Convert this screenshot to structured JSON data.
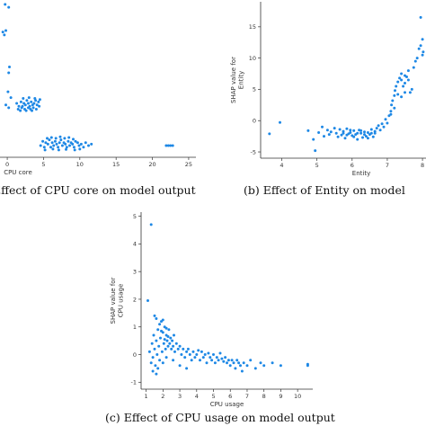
{
  "colors": {
    "points": "#1e88e5",
    "axis": "#333333",
    "caption": "#111111"
  },
  "chart_data": [
    {
      "type": "scatter",
      "caption": "Effect of CPU core on model output",
      "xlabel": "CPU core",
      "ylabel": "",
      "xlim": [
        -1,
        26
      ],
      "ylim": [
        -0.3,
        5.1
      ],
      "xticks": [
        0,
        5,
        10,
        15,
        20,
        25
      ],
      "yticks": [],
      "series": [
        {
          "points": [
            [
              -0.3,
              4.95
            ],
            [
              0.2,
              4.85
            ],
            [
              -0.6,
              4.0
            ],
            [
              -0.4,
              3.9
            ],
            [
              -0.2,
              4.05
            ],
            [
              0.3,
              2.8
            ],
            [
              0.2,
              2.6
            ],
            [
              0.1,
              1.95
            ],
            [
              0.5,
              1.75
            ],
            [
              -0.2,
              1.5
            ],
            [
              0.2,
              1.4
            ],
            [
              1.3,
              1.55
            ],
            [
              1.6,
              1.45
            ],
            [
              1.9,
              1.6
            ],
            [
              2.1,
              1.45
            ],
            [
              2.3,
              1.55
            ],
            [
              2.5,
              1.5
            ],
            [
              2.7,
              1.65
            ],
            [
              2.9,
              1.55
            ],
            [
              3.1,
              1.45
            ],
            [
              3.3,
              1.6
            ],
            [
              3.5,
              1.5
            ],
            [
              3.7,
              1.55
            ],
            [
              3.9,
              1.65
            ],
            [
              4.1,
              1.5
            ],
            [
              4.3,
              1.6
            ],
            [
              1.5,
              1.35
            ],
            [
              1.8,
              1.3
            ],
            [
              2.0,
              1.4
            ],
            [
              2.4,
              1.35
            ],
            [
              2.6,
              1.3
            ],
            [
              2.9,
              1.4
            ],
            [
              3.2,
              1.35
            ],
            [
              3.4,
              1.3
            ],
            [
              3.6,
              1.4
            ],
            [
              4.0,
              1.35
            ],
            [
              4.4,
              1.45
            ],
            [
              2.2,
              1.72
            ],
            [
              3.0,
              1.75
            ],
            [
              3.8,
              1.72
            ],
            [
              4.5,
              1.68
            ],
            [
              4.6,
              0.1
            ],
            [
              4.9,
              0.25
            ],
            [
              5.1,
              0.05
            ],
            [
              5.3,
              0.2
            ],
            [
              5.6,
              0.15
            ],
            [
              5.8,
              0.3
            ],
            [
              6.0,
              0.05
            ],
            [
              6.2,
              0.2
            ],
            [
              6.4,
              0.1
            ],
            [
              6.6,
              0.25
            ],
            [
              6.8,
              0.15
            ],
            [
              7.0,
              0.05
            ],
            [
              7.2,
              0.2
            ],
            [
              7.4,
              0.3
            ],
            [
              7.6,
              0.1
            ],
            [
              7.8,
              0.2
            ],
            [
              8.0,
              0.15
            ],
            [
              8.2,
              0.05
            ],
            [
              8.4,
              0.25
            ],
            [
              8.6,
              0.1
            ],
            [
              8.8,
              0.2
            ],
            [
              9.0,
              0.15
            ],
            [
              9.2,
              0.05
            ],
            [
              9.4,
              0.25
            ],
            [
              9.7,
              0.2
            ],
            [
              9.9,
              0.1
            ],
            [
              10.2,
              0.15
            ],
            [
              10.5,
              0.05
            ],
            [
              10.8,
              0.2
            ],
            [
              11.2,
              0.1
            ],
            [
              11.6,
              0.15
            ],
            [
              5.5,
              0.35
            ],
            [
              6.1,
              0.38
            ],
            [
              6.7,
              0.35
            ],
            [
              7.3,
              0.4
            ],
            [
              7.9,
              0.35
            ],
            [
              8.5,
              0.38
            ],
            [
              9.1,
              0.32
            ],
            [
              5.2,
              -0.05
            ],
            [
              6.3,
              -0.02
            ],
            [
              7.1,
              -0.05
            ],
            [
              8.1,
              -0.03
            ],
            [
              9.3,
              -0.05
            ],
            [
              10.0,
              -0.02
            ],
            [
              21.9,
              0.1
            ],
            [
              22.2,
              0.1
            ],
            [
              22.5,
              0.1
            ],
            [
              22.8,
              0.1
            ]
          ]
        }
      ]
    },
    {
      "type": "scatter",
      "caption": "(b) Effect of Entity on model",
      "xlabel": "Entity",
      "ylabel": "SHAP value for\nEntity",
      "xlim": [
        3.4,
        8.1
      ],
      "ylim": [
        -6,
        19
      ],
      "xticks": [
        4,
        5,
        6,
        7,
        8
      ],
      "yticks": [
        -5,
        0,
        5,
        10,
        15
      ],
      "series": [
        {
          "points": [
            [
              3.65,
              -2.1
            ],
            [
              3.95,
              -0.3
            ],
            [
              4.75,
              -1.6
            ],
            [
              4.9,
              -3.0
            ],
            [
              4.95,
              -4.8
            ],
            [
              5.05,
              -1.9
            ],
            [
              5.15,
              -1.0
            ],
            [
              5.2,
              -2.5
            ],
            [
              5.3,
              -1.5
            ],
            [
              5.35,
              -2.2
            ],
            [
              5.4,
              -1.8
            ],
            [
              5.5,
              -1.2
            ],
            [
              5.55,
              -2.0
            ],
            [
              5.6,
              -2.6
            ],
            [
              5.65,
              -1.4
            ],
            [
              5.7,
              -2.3
            ],
            [
              5.75,
              -1.7
            ],
            [
              5.8,
              -2.8
            ],
            [
              5.85,
              -1.3
            ],
            [
              5.9,
              -2.1
            ],
            [
              5.95,
              -1.9
            ],
            [
              6.0,
              -2.4
            ],
            [
              6.05,
              -1.6
            ],
            [
              6.1,
              -2.2
            ],
            [
              6.15,
              -3.0
            ],
            [
              6.2,
              -1.5
            ],
            [
              6.25,
              -2.0
            ],
            [
              6.3,
              -2.7
            ],
            [
              6.35,
              -1.8
            ],
            [
              6.4,
              -2.5
            ],
            [
              6.45,
              -1.9
            ],
            [
              6.5,
              -2.2
            ],
            [
              6.55,
              -1.4
            ],
            [
              6.6,
              -2.6
            ],
            [
              6.65,
              -2.0
            ],
            [
              5.75,
              -2.0
            ],
            [
              5.85,
              -2.3
            ],
            [
              5.95,
              -1.5
            ],
            [
              6.05,
              -2.6
            ],
            [
              6.15,
              -2.0
            ],
            [
              6.25,
              -1.6
            ],
            [
              6.35,
              -2.2
            ],
            [
              6.45,
              -2.8
            ],
            [
              6.55,
              -2.0
            ],
            [
              6.65,
              -1.7
            ],
            [
              6.7,
              -1.2
            ],
            [
              6.75,
              -0.8
            ],
            [
              6.8,
              -1.5
            ],
            [
              6.85,
              -0.5
            ],
            [
              6.9,
              -1.0
            ],
            [
              6.95,
              0.2
            ],
            [
              7.0,
              -0.4
            ],
            [
              7.05,
              0.8
            ],
            [
              7.1,
              1.5
            ],
            [
              7.12,
              2.5
            ],
            [
              7.15,
              3.2
            ],
            [
              7.2,
              4.0
            ],
            [
              7.22,
              4.8
            ],
            [
              7.25,
              5.5
            ],
            [
              7.3,
              6.2
            ],
            [
              7.35,
              6.8
            ],
            [
              7.4,
              7.5
            ],
            [
              7.45,
              5.5
            ],
            [
              7.5,
              6.0
            ],
            [
              7.55,
              7.0
            ],
            [
              7.6,
              6.5
            ],
            [
              7.65,
              4.5
            ],
            [
              7.7,
              5.0
            ],
            [
              7.3,
              4.2
            ],
            [
              7.4,
              3.8
            ],
            [
              7.5,
              4.5
            ],
            [
              7.75,
              8.5
            ],
            [
              7.8,
              9.5
            ],
            [
              7.85,
              10.0
            ],
            [
              7.9,
              11.5
            ],
            [
              7.95,
              12.0
            ],
            [
              8.0,
              13.0
            ],
            [
              7.6,
              8.0
            ],
            [
              7.5,
              7.2
            ],
            [
              7.4,
              6.5
            ],
            [
              7.95,
              16.5
            ],
            [
              8.0,
              10.5
            ],
            [
              8.02,
              11.0
            ],
            [
              7.1,
              1.0
            ],
            [
              7.2,
              2.0
            ]
          ]
        }
      ]
    },
    {
      "type": "scatter",
      "caption": "(c) Effect of CPU usage on model output",
      "xlabel": "CPU usage",
      "ylabel": "SHAP value for\nCPU usage",
      "xlim": [
        0.7,
        10.9
      ],
      "ylim": [
        -1.25,
        5.15
      ],
      "xticks": [
        1,
        2,
        3,
        4,
        5,
        6,
        7,
        8,
        9,
        10
      ],
      "yticks": [
        -1,
        0,
        1,
        2,
        3,
        4,
        5
      ],
      "series": [
        {
          "points": [
            [
              1.3,
              4.7
            ],
            [
              1.1,
              1.95
            ],
            [
              1.2,
              0.1
            ],
            [
              1.3,
              -0.3
            ],
            [
              1.35,
              0.4
            ],
            [
              1.4,
              -0.1
            ],
            [
              1.45,
              0.7
            ],
            [
              1.5,
              0.2
            ],
            [
              1.55,
              -0.4
            ],
            [
              1.6,
              0.5
            ],
            [
              1.65,
              0.0
            ],
            [
              1.7,
              0.9
            ],
            [
              1.75,
              0.3
            ],
            [
              1.8,
              -0.2
            ],
            [
              1.85,
              0.6
            ],
            [
              1.9,
              1.2
            ],
            [
              1.95,
              0.1
            ],
            [
              2.0,
              0.8
            ],
            [
              2.05,
              0.4
            ],
            [
              2.1,
              1.0
            ],
            [
              2.15,
              0.2
            ],
            [
              2.2,
              0.7
            ],
            [
              2.25,
              0.5
            ],
            [
              2.3,
              0.3
            ],
            [
              2.35,
              0.9
            ],
            [
              2.4,
              0.4
            ],
            [
              2.45,
              0.6
            ],
            [
              2.5,
              0.2
            ],
            [
              2.55,
              0.5
            ],
            [
              2.6,
              0.3
            ],
            [
              2.65,
              0.7
            ],
            [
              2.7,
              0.1
            ],
            [
              2.8,
              0.4
            ],
            [
              2.9,
              0.2
            ],
            [
              3.0,
              0.3
            ],
            [
              3.1,
              0.0
            ],
            [
              3.2,
              0.2
            ],
            [
              3.3,
              -0.1
            ],
            [
              3.4,
              0.1
            ],
            [
              3.5,
              0.2
            ],
            [
              3.6,
              0.0
            ],
            [
              3.7,
              -0.2
            ],
            [
              3.8,
              0.1
            ],
            [
              3.9,
              -0.1
            ],
            [
              4.0,
              0.0
            ],
            [
              4.1,
              0.15
            ],
            [
              4.2,
              -0.2
            ],
            [
              4.3,
              0.1
            ],
            [
              4.4,
              -0.1
            ],
            [
              4.5,
              0.0
            ],
            [
              4.6,
              -0.3
            ],
            [
              4.7,
              0.05
            ],
            [
              4.8,
              -0.1
            ],
            [
              4.9,
              -0.2
            ],
            [
              5.0,
              0.0
            ],
            [
              5.1,
              -0.3
            ],
            [
              5.2,
              -0.1
            ],
            [
              5.3,
              -0.2
            ],
            [
              5.4,
              0.05
            ],
            [
              5.5,
              -0.15
            ],
            [
              5.6,
              -0.25
            ],
            [
              5.7,
              -0.1
            ],
            [
              5.8,
              -0.3
            ],
            [
              5.9,
              -0.2
            ],
            [
              6.0,
              -0.4
            ],
            [
              6.1,
              -0.2
            ],
            [
              6.2,
              -0.3
            ],
            [
              6.3,
              -0.5
            ],
            [
              6.4,
              -0.2
            ],
            [
              6.5,
              -0.3
            ],
            [
              6.6,
              -0.4
            ],
            [
              6.7,
              -0.6
            ],
            [
              6.8,
              -0.3
            ],
            [
              7.0,
              -0.4
            ],
            [
              7.2,
              -0.2
            ],
            [
              7.5,
              -0.5
            ],
            [
              7.8,
              -0.3
            ],
            [
              8.0,
              -0.4
            ],
            [
              8.5,
              -0.3
            ],
            [
              9.0,
              -0.4
            ],
            [
              10.6,
              -0.4
            ],
            [
              10.6,
              -0.35
            ],
            [
              1.5,
              1.4
            ],
            [
              1.6,
              1.3
            ],
            [
              1.8,
              1.1
            ],
            [
              2.0,
              1.25
            ],
            [
              2.2,
              0.95
            ],
            [
              1.9,
              0.85
            ],
            [
              2.1,
              0.55
            ],
            [
              2.3,
              0.65
            ],
            [
              1.4,
              -0.6
            ],
            [
              1.6,
              -0.7
            ],
            [
              1.7,
              -0.5
            ],
            [
              2.0,
              -0.3
            ],
            [
              2.2,
              -0.1
            ],
            [
              2.6,
              -0.2
            ],
            [
              3.0,
              -0.4
            ],
            [
              3.4,
              -0.5
            ]
          ]
        }
      ]
    }
  ]
}
